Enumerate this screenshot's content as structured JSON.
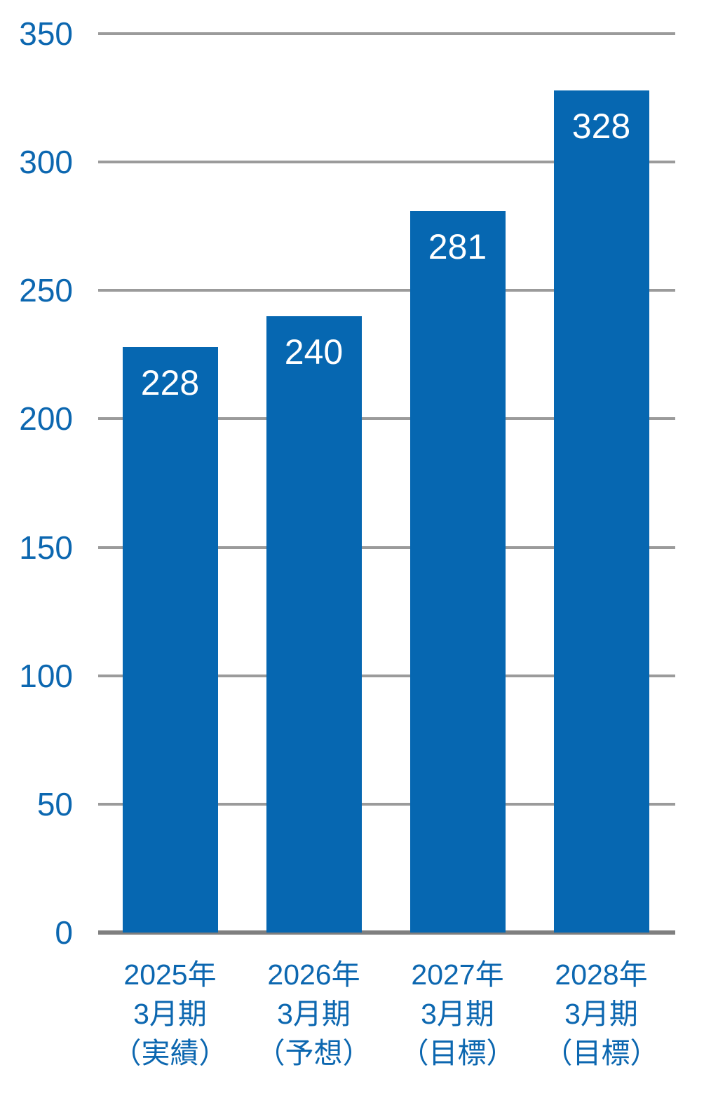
{
  "chart_data": {
    "type": "bar",
    "categories": [
      "2025年\n3月期\n（実績）",
      "2026年\n3月期\n（予想）",
      "2027年\n3月期\n（目標）",
      "2028年\n3月期\n（目標）"
    ],
    "values": [
      228,
      240,
      281,
      328
    ],
    "bar_labels": [
      "228",
      "240",
      "281",
      "328"
    ],
    "yticks": [
      0,
      50,
      100,
      150,
      200,
      250,
      300,
      350
    ],
    "ylim": [
      0,
      350
    ],
    "title": "",
    "xlabel": "",
    "ylabel": "",
    "grid": true,
    "legend_position": "none",
    "bar_label_position": "inside-top",
    "colors": {
      "bar": "#0667b1",
      "bar_value_label": "#ffffff",
      "axis_text": "#0c67b0",
      "gridline": "#9b9b9b",
      "baseline": "#7f7f7f",
      "background": "#ffffff"
    }
  }
}
